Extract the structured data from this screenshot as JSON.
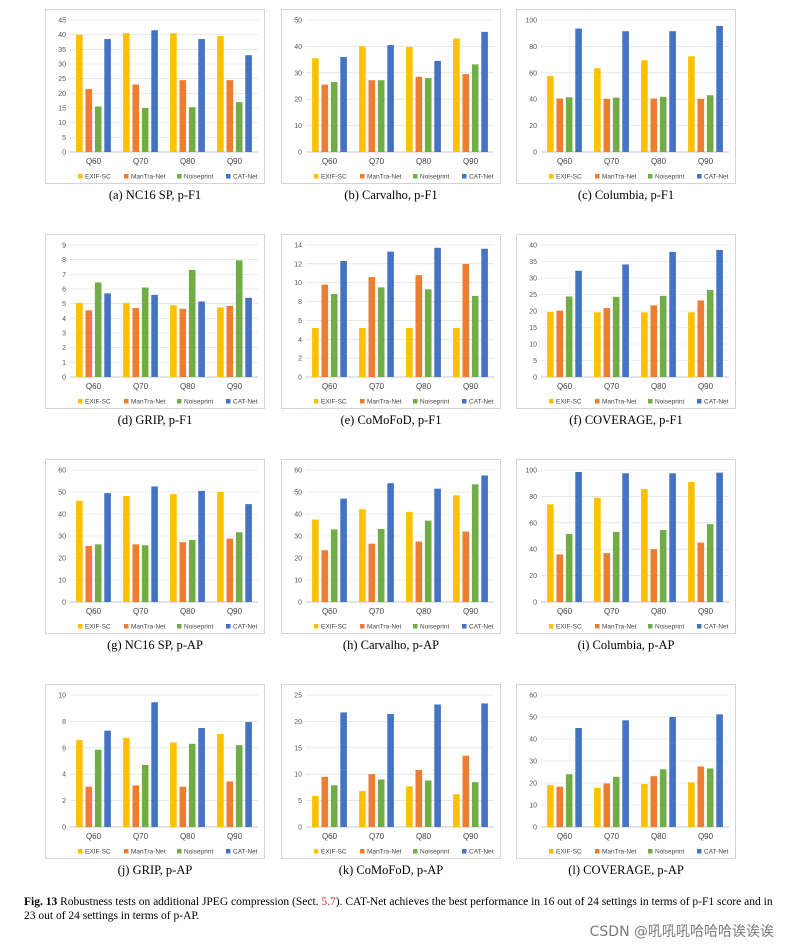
{
  "colors": {
    "EXIF-SC": "#FFC000",
    "ManTra-Net": "#ED7D31",
    "Noiseprint": "#70AD47",
    "CAT-Net": "#4472C4"
  },
  "caption_block": {
    "label": "Fig. 13",
    "text_before_ref": " Robustness tests on additional JPEG compression (Sect. ",
    "ref": "5.7",
    "text_after_ref": "). CAT-Net achieves the best performance in 16 out of 24 settings in terms of p-F1 score and in 23 out of 24 settings in terms of p-AP."
  },
  "watermark": "CSDN @吼吼吼哈哈哈诶诶诶",
  "chart_data": [
    {
      "type": "bar",
      "caption": "(a) NC16 SP, p-F1",
      "categories": [
        "Q60",
        "Q70",
        "Q80",
        "Q90"
      ],
      "ylim": [
        0,
        45
      ],
      "yticks": [
        0,
        5,
        10,
        15,
        20,
        25,
        30,
        35,
        40,
        45
      ],
      "series": [
        {
          "name": "EXIF-SC",
          "values": [
            40,
            40.5,
            40.5,
            39.5
          ]
        },
        {
          "name": "ManTra-Net",
          "values": [
            21.5,
            23,
            24.5,
            24.5
          ]
        },
        {
          "name": "Noiseprint",
          "values": [
            15.5,
            15,
            15.3,
            17
          ]
        },
        {
          "name": "CAT-Net",
          "values": [
            38.5,
            41.5,
            38.5,
            33
          ]
        }
      ]
    },
    {
      "type": "bar",
      "caption": "(b) Carvalho, p-F1",
      "categories": [
        "Q60",
        "Q70",
        "Q80",
        "Q90"
      ],
      "ylim": [
        0,
        50
      ],
      "yticks": [
        0,
        10,
        20,
        30,
        40,
        50
      ],
      "series": [
        {
          "name": "EXIF-SC",
          "values": [
            35.5,
            40,
            39.8,
            43
          ]
        },
        {
          "name": "ManTra-Net",
          "values": [
            25.5,
            27.2,
            28.5,
            29.5
          ]
        },
        {
          "name": "Noiseprint",
          "values": [
            26.5,
            27.2,
            28,
            33.2
          ]
        },
        {
          "name": "CAT-Net",
          "values": [
            36,
            40.5,
            34.5,
            45.5
          ]
        }
      ]
    },
    {
      "type": "bar",
      "caption": "(c) Columbia, p-F1",
      "categories": [
        "Q60",
        "Q70",
        "Q80",
        "Q90"
      ],
      "ylim": [
        0,
        100
      ],
      "yticks": [
        0,
        20,
        40,
        60,
        80,
        100
      ],
      "series": [
        {
          "name": "EXIF-SC",
          "values": [
            57.5,
            63.5,
            69.5,
            72.5
          ]
        },
        {
          "name": "ManTra-Net",
          "values": [
            40.5,
            40.3,
            40.5,
            40.3
          ]
        },
        {
          "name": "Noiseprint",
          "values": [
            41.5,
            41.2,
            41.8,
            43
          ]
        },
        {
          "name": "CAT-Net",
          "values": [
            93.5,
            91.5,
            91.5,
            95.5
          ]
        }
      ]
    },
    {
      "type": "bar",
      "caption": "(d) GRIP, p-F1",
      "categories": [
        "Q60",
        "Q70",
        "Q80",
        "Q90"
      ],
      "ylim": [
        0,
        9
      ],
      "yticks": [
        0,
        1,
        2,
        3,
        4,
        5,
        6,
        7,
        8,
        9
      ],
      "series": [
        {
          "name": "EXIF-SC",
          "values": [
            5.05,
            5.05,
            4.9,
            4.75
          ]
        },
        {
          "name": "ManTra-Net",
          "values": [
            4.55,
            4.7,
            4.65,
            4.85
          ]
        },
        {
          "name": "Noiseprint",
          "values": [
            6.45,
            6.1,
            7.3,
            7.95
          ]
        },
        {
          "name": "CAT-Net",
          "values": [
            5.7,
            5.6,
            5.15,
            5.4
          ]
        }
      ]
    },
    {
      "type": "bar",
      "caption": "(e) CoMoFoD, p-F1",
      "categories": [
        "Q60",
        "Q70",
        "Q80",
        "Q90"
      ],
      "ylim": [
        0,
        14
      ],
      "yticks": [
        0,
        2,
        4,
        6,
        8,
        10,
        12,
        14
      ],
      "series": [
        {
          "name": "EXIF-SC",
          "values": [
            5.2,
            5.2,
            5.2,
            5.2
          ]
        },
        {
          "name": "ManTra-Net",
          "values": [
            9.8,
            10.6,
            10.8,
            12
          ]
        },
        {
          "name": "Noiseprint",
          "values": [
            8.8,
            9.5,
            9.3,
            8.6
          ]
        },
        {
          "name": "CAT-Net",
          "values": [
            12.3,
            13.3,
            13.7,
            13.6
          ]
        }
      ]
    },
    {
      "type": "bar",
      "caption": "(f) COVERAGE, p-F1",
      "categories": [
        "Q60",
        "Q70",
        "Q80",
        "Q90"
      ],
      "ylim": [
        0,
        40
      ],
      "yticks": [
        0,
        5,
        10,
        15,
        20,
        25,
        30,
        35,
        40
      ],
      "series": [
        {
          "name": "EXIF-SC",
          "values": [
            19.7,
            19.6,
            19.6,
            19.6
          ]
        },
        {
          "name": "ManTra-Net",
          "values": [
            20.1,
            20.9,
            21.7,
            23.2
          ]
        },
        {
          "name": "Noiseprint",
          "values": [
            24.4,
            24.3,
            24.6,
            26.4
          ]
        },
        {
          "name": "CAT-Net",
          "values": [
            32.2,
            34.1,
            37.9,
            38.5
          ]
        }
      ]
    },
    {
      "type": "bar",
      "caption": "(g) NC16 SP, p-AP",
      "categories": [
        "Q60",
        "Q70",
        "Q80",
        "Q90"
      ],
      "ylim": [
        0,
        60
      ],
      "yticks": [
        0,
        10,
        20,
        30,
        40,
        50,
        60
      ],
      "series": [
        {
          "name": "EXIF-SC",
          "values": [
            46,
            48.2,
            49,
            50
          ]
        },
        {
          "name": "ManTra-Net",
          "values": [
            25.5,
            26.2,
            27.2,
            28.8
          ]
        },
        {
          "name": "Noiseprint",
          "values": [
            26.2,
            25.8,
            28.2,
            31.7
          ]
        },
        {
          "name": "CAT-Net",
          "values": [
            49.5,
            52.5,
            50.5,
            44.5
          ]
        }
      ]
    },
    {
      "type": "bar",
      "caption": "(h) Carvalho, p-AP",
      "categories": [
        "Q60",
        "Q70",
        "Q80",
        "Q90"
      ],
      "ylim": [
        0,
        60
      ],
      "yticks": [
        0,
        10,
        20,
        30,
        40,
        50,
        60
      ],
      "series": [
        {
          "name": "EXIF-SC",
          "values": [
            37.5,
            42.2,
            41,
            48.5
          ]
        },
        {
          "name": "ManTra-Net",
          "values": [
            23.5,
            26.5,
            27.5,
            32
          ]
        },
        {
          "name": "Noiseprint",
          "values": [
            33,
            33.2,
            37,
            53.5
          ]
        },
        {
          "name": "CAT-Net",
          "values": [
            47,
            54,
            51.5,
            57.5
          ]
        }
      ]
    },
    {
      "type": "bar",
      "caption": "(i) Columbia, p-AP",
      "categories": [
        "Q60",
        "Q70",
        "Q80",
        "Q90"
      ],
      "ylim": [
        0,
        100
      ],
      "yticks": [
        0,
        20,
        40,
        60,
        80,
        100
      ],
      "series": [
        {
          "name": "EXIF-SC",
          "values": [
            74,
            79,
            85.5,
            91
          ]
        },
        {
          "name": "ManTra-Net",
          "values": [
            36,
            37,
            40,
            45
          ]
        },
        {
          "name": "Noiseprint",
          "values": [
            51.5,
            53,
            54.5,
            59
          ]
        },
        {
          "name": "CAT-Net",
          "values": [
            98.5,
            97.5,
            97.5,
            98
          ]
        }
      ]
    },
    {
      "type": "bar",
      "caption": "(j) GRIP, p-AP",
      "categories": [
        "Q60",
        "Q70",
        "Q80",
        "Q90"
      ],
      "ylim": [
        0,
        10
      ],
      "yticks": [
        0,
        2,
        4,
        6,
        8,
        10
      ],
      "series": [
        {
          "name": "EXIF-SC",
          "values": [
            6.6,
            6.75,
            6.4,
            7.05
          ]
        },
        {
          "name": "ManTra-Net",
          "values": [
            3.05,
            3.15,
            3.05,
            3.45
          ]
        },
        {
          "name": "Noiseprint",
          "values": [
            5.85,
            4.7,
            6.3,
            6.2
          ]
        },
        {
          "name": "CAT-Net",
          "values": [
            7.3,
            9.45,
            7.5,
            7.95
          ]
        }
      ]
    },
    {
      "type": "bar",
      "caption": "(k) CoMoFoD, p-AP",
      "categories": [
        "Q60",
        "Q70",
        "Q80",
        "Q90"
      ],
      "ylim": [
        0,
        25
      ],
      "yticks": [
        0,
        5,
        10,
        15,
        20,
        25
      ],
      "series": [
        {
          "name": "EXIF-SC",
          "values": [
            5.9,
            6.8,
            7.7,
            6.2
          ]
        },
        {
          "name": "ManTra-Net",
          "values": [
            9.5,
            10,
            10.8,
            13.5
          ]
        },
        {
          "name": "Noiseprint",
          "values": [
            7.9,
            9,
            8.8,
            8.5
          ]
        },
        {
          "name": "CAT-Net",
          "values": [
            21.7,
            21.4,
            23.2,
            23.4
          ]
        }
      ]
    },
    {
      "type": "bar",
      "caption": "(l) COVERAGE, p-AP",
      "categories": [
        "Q60",
        "Q70",
        "Q80",
        "Q90"
      ],
      "ylim": [
        0,
        60
      ],
      "yticks": [
        0,
        10,
        20,
        30,
        40,
        50,
        60
      ],
      "series": [
        {
          "name": "EXIF-SC",
          "values": [
            19,
            17.8,
            19.5,
            20.3
          ]
        },
        {
          "name": "ManTra-Net",
          "values": [
            18.3,
            19.8,
            23.1,
            27.5
          ]
        },
        {
          "name": "Noiseprint",
          "values": [
            24,
            22.8,
            26.2,
            26.6
          ]
        },
        {
          "name": "CAT-Net",
          "values": [
            45,
            48.5,
            50,
            51.2
          ]
        }
      ]
    }
  ]
}
